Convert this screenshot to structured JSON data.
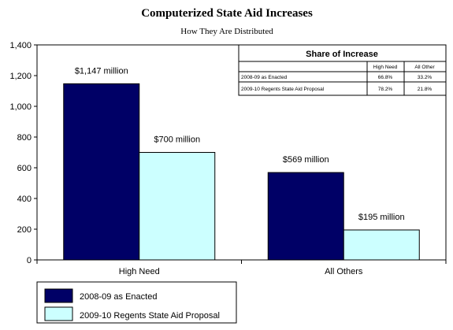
{
  "chart_data": {
    "type": "bar",
    "title": "Computerized State Aid Increases",
    "subtitle": "How They Are Distributed",
    "categories": [
      "High Need",
      "All Others"
    ],
    "series": [
      {
        "name": "2008-09 as Enacted",
        "values": [
          1147,
          569
        ],
        "labels": [
          "$1,147 million",
          "$569 million"
        ],
        "color": "#000066"
      },
      {
        "name": "2009-10 Regents State Aid Proposal",
        "values": [
          700,
          195
        ],
        "labels": [
          "$700 million",
          "$195 million"
        ],
        "color": "#ccffff"
      }
    ],
    "ylim": [
      0,
      1400
    ],
    "yticks": [
      0,
      200,
      400,
      600,
      800,
      1000,
      1200,
      1400
    ],
    "ytick_labels": [
      "0",
      "200",
      "400",
      "600",
      "800",
      "1,000",
      "1,200",
      "1,400"
    ],
    "grid": false,
    "legend_position": "bottom-left",
    "share_table": {
      "title": "Share of Increase",
      "columns": [
        "High Need",
        "All Other"
      ],
      "rows": [
        {
          "label": "2008-09 as Enacted",
          "values": [
            "66.8%",
            "33.2%"
          ]
        },
        {
          "label": "2009-10 Regents State Aid Proposal",
          "values": [
            "78.2%",
            "21.8%"
          ]
        }
      ]
    }
  }
}
